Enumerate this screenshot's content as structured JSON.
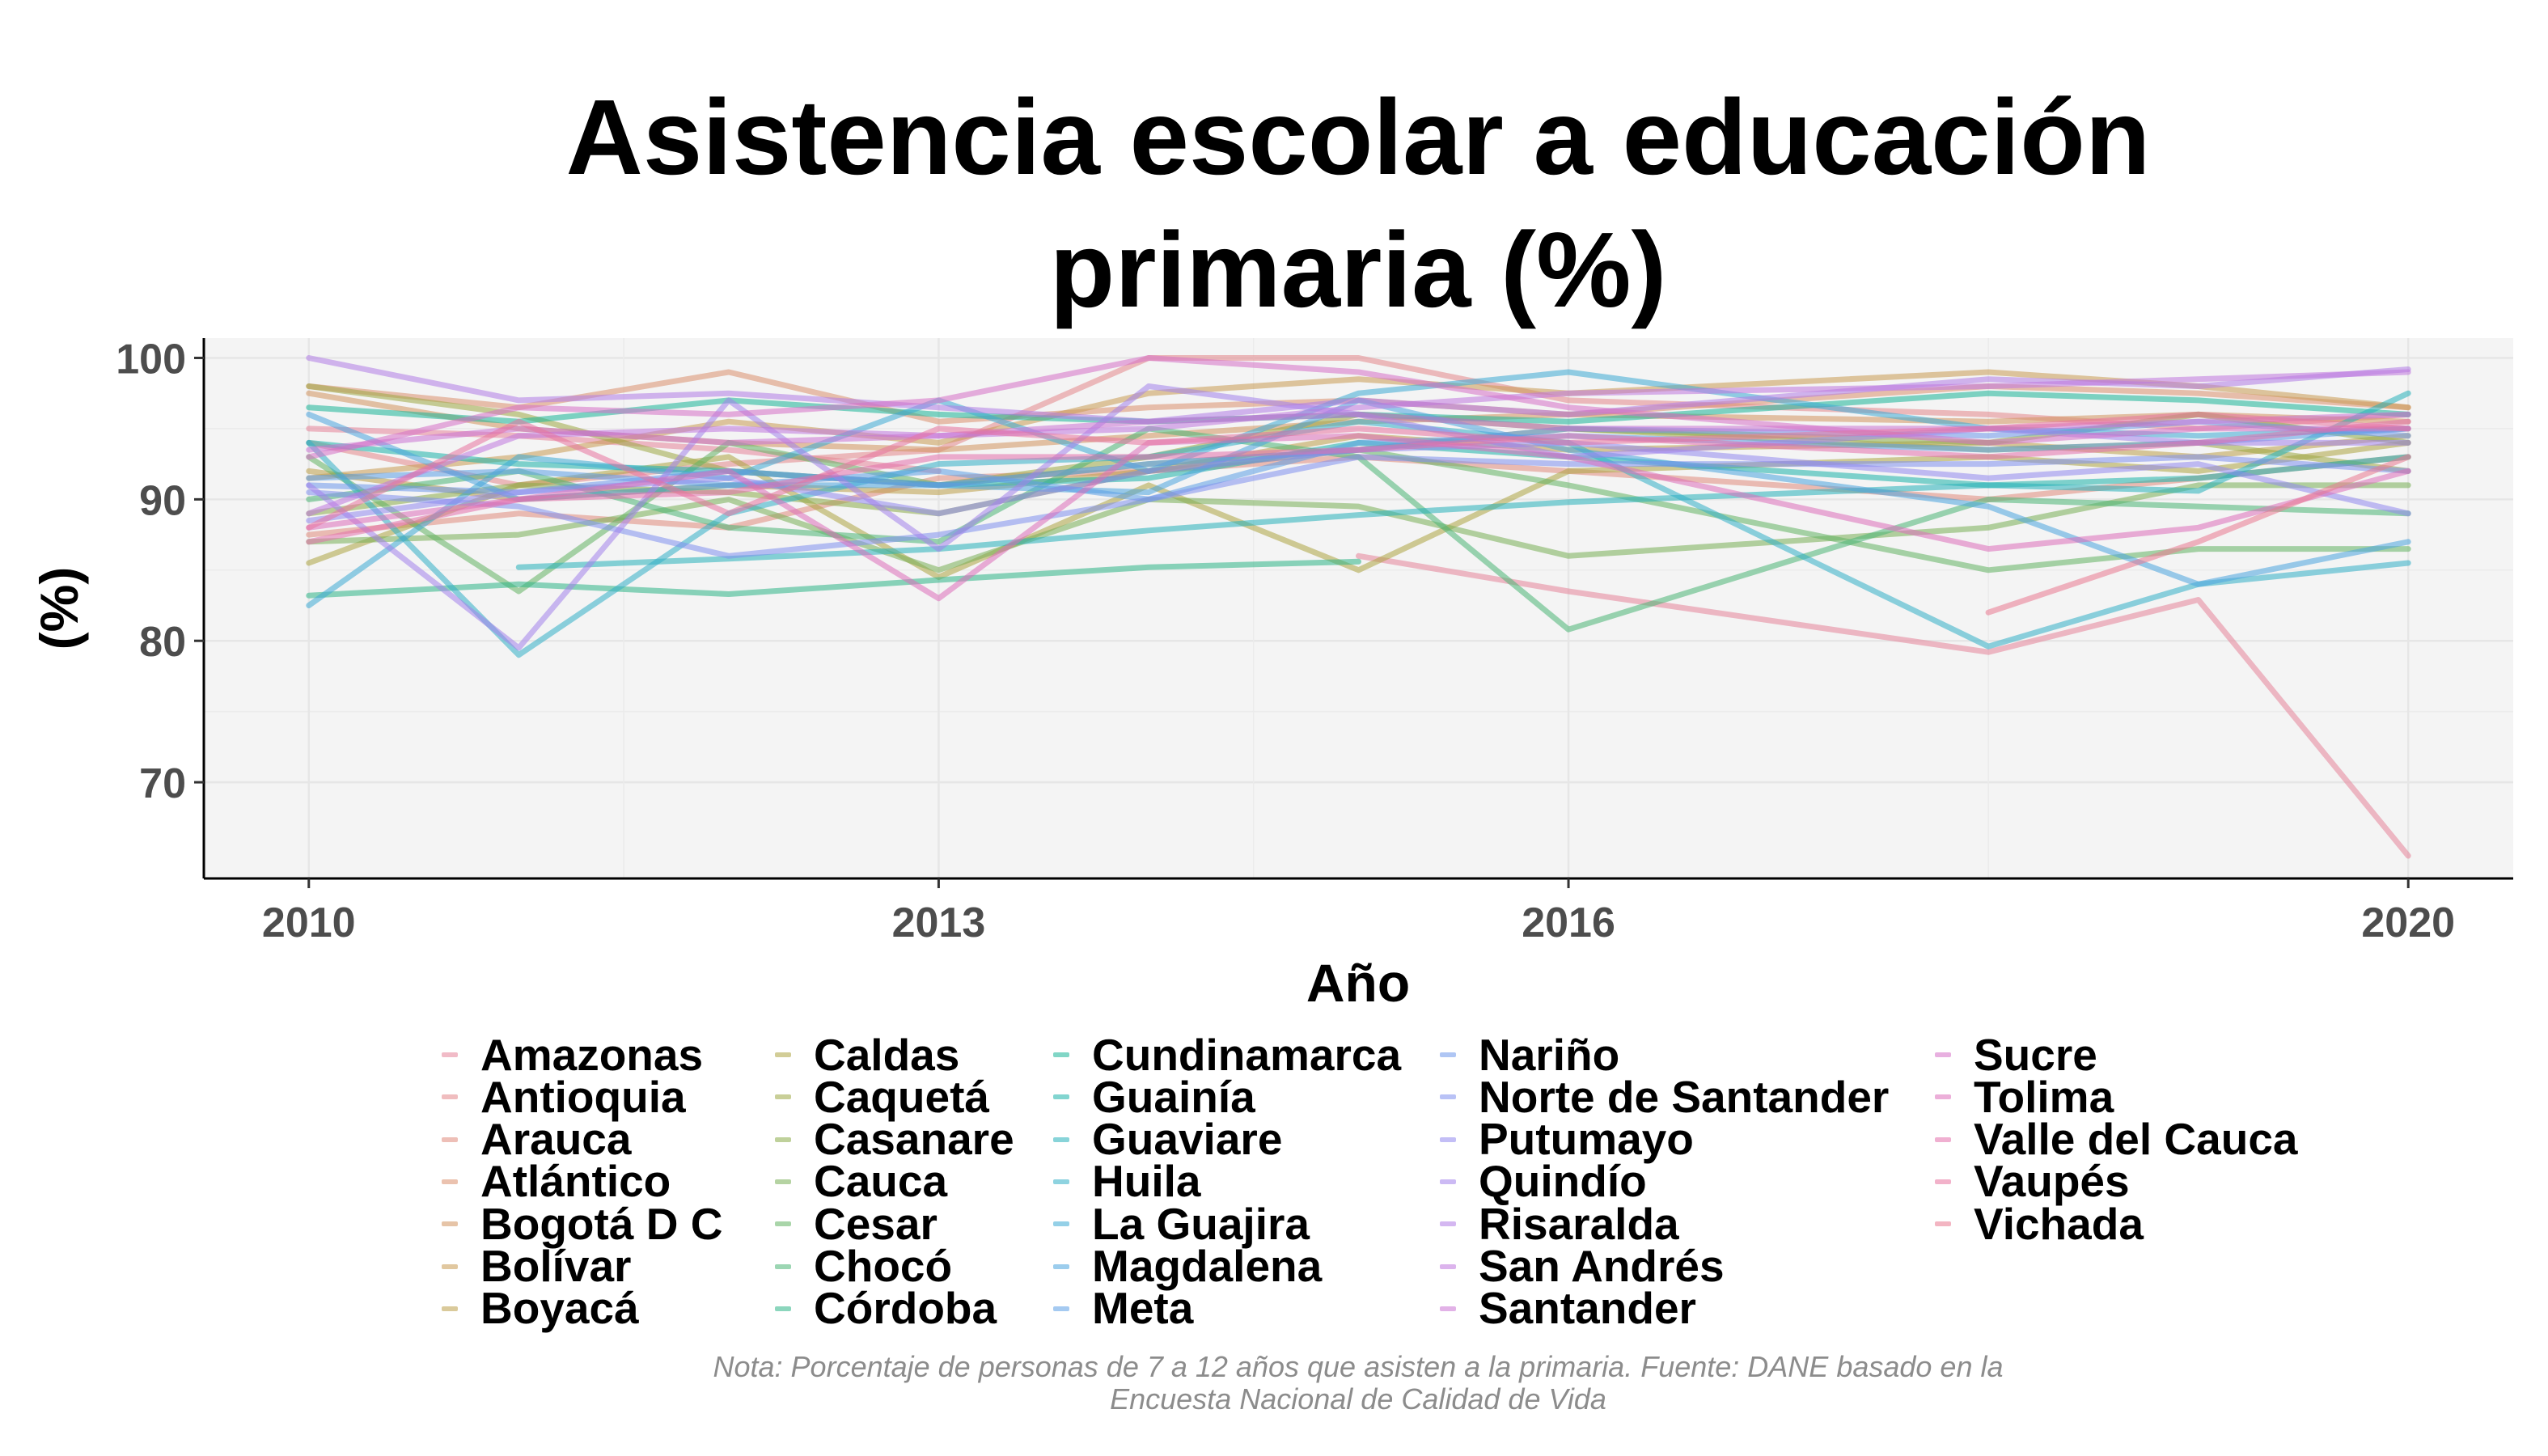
{
  "chart_data": {
    "type": "line",
    "title_lines": [
      "Asistencia escolar a educación",
      "primaria (%)"
    ],
    "xlabel": "Año",
    "ylabel": "(%)",
    "xlim": [
      2009.5,
      2020.5
    ],
    "ylim": [
      63.2,
      101.4
    ],
    "xticks": [
      2010,
      2013,
      2016,
      2020
    ],
    "yticks": [
      70,
      80,
      90,
      100
    ],
    "grid": true,
    "legend_position": "bottom",
    "caption_lines": [
      "Nota: Porcentaje de personas de 7 a 12 años que asisten a la primaria. Fuente: DANE basado en la",
      "Encuesta Nacional de Calidad de Vida"
    ],
    "x": [
      2010,
      2011,
      2012,
      2013,
      2014,
      2015,
      2016,
      2018,
      2019,
      2020
    ],
    "series": [
      {
        "name": "Amazonas",
        "color": "#E58499",
        "values": [
          95.0,
          94.5,
          93.5,
          92.0,
          null,
          86.0,
          83.5,
          79.2,
          82.9,
          64.8
        ]
      },
      {
        "name": "Antioquia",
        "color": "#E3878A",
        "values": [
          94.0,
          91.0,
          92.5,
          93.5,
          100.0,
          100.0,
          97.0,
          96.0,
          95.0,
          96.0
        ]
      },
      {
        "name": "Arauca",
        "color": "#E08B7C",
        "values": [
          87.5,
          89.0,
          88.0,
          91.5,
          92.0,
          93.0,
          92.0,
          90.0,
          91.5,
          93.0
        ]
      },
      {
        "name": "Atlántico",
        "color": "#DA8F6D",
        "values": [
          98.0,
          96.5,
          99.0,
          95.5,
          96.5,
          97.0,
          96.0,
          98.0,
          97.5,
          96.5
        ]
      },
      {
        "name": "Bogotá D C",
        "color": "#D2945F",
        "values": [
          97.5,
          95.0,
          94.0,
          93.5,
          94.5,
          95.5,
          96.0,
          95.5,
          96.0,
          95.5
        ]
      },
      {
        "name": "Bolívar",
        "color": "#C89A52",
        "values": [
          91.5,
          93.0,
          95.5,
          94.0,
          97.5,
          98.5,
          97.5,
          99.0,
          98.0,
          96.5
        ]
      },
      {
        "name": "Boyacá",
        "color": "#BC9F48",
        "values": [
          92.0,
          90.0,
          91.0,
          90.5,
          92.0,
          94.5,
          93.5,
          94.0,
          93.0,
          94.5
        ]
      },
      {
        "name": "Caldas",
        "color": "#ADA442",
        "values": [
          85.5,
          91.0,
          93.0,
          84.5,
          91.0,
          85.0,
          92.0,
          93.0,
          92.0,
          94.0
        ]
      },
      {
        "name": "Caquetá",
        "color": "#9DA843",
        "values": [
          98.0,
          96.0,
          92.0,
          91.0,
          93.0,
          96.0,
          95.0,
          93.5,
          94.0,
          92.0
        ]
      },
      {
        "name": "Casanare",
        "color": "#8BAC49",
        "values": [
          89.0,
          91.0,
          90.5,
          89.0,
          92.0,
          93.5,
          95.0,
          94.0,
          96.0,
          94.0
        ]
      },
      {
        "name": "Cauca",
        "color": "#78AF55",
        "values": [
          87.0,
          87.5,
          90.0,
          85.0,
          90.0,
          89.5,
          86.0,
          88.0,
          91.0,
          91.0
        ]
      },
      {
        "name": "Cesar",
        "color": "#62B263",
        "values": [
          93.0,
          83.5,
          94.0,
          91.0,
          92.5,
          93.5,
          91.0,
          85.0,
          86.5,
          86.5
        ]
      },
      {
        "name": "Chocó",
        "color": "#4AB474",
        "values": [
          90.0,
          92.0,
          88.0,
          87.0,
          95.0,
          93.0,
          80.8,
          90.0,
          89.5,
          89.0
        ]
      },
      {
        "name": "Córdoba",
        "color": "#2EB586",
        "values": [
          83.2,
          84.0,
          83.3,
          84.3,
          85.2,
          85.6,
          null,
          null,
          null,
          null
        ]
      },
      {
        "name": "Cundinamarca",
        "color": "#19B598",
        "values": [
          96.5,
          95.5,
          97.0,
          96.0,
          95.5,
          96.0,
          95.5,
          97.5,
          97.0,
          96.0
        ]
      },
      {
        "name": "Guainía",
        "color": "#1BB3A9",
        "values": [
          94.0,
          92.5,
          92.0,
          91.0,
          91.5,
          94.0,
          93.0,
          91.0,
          91.5,
          93.0
        ]
      },
      {
        "name": "Guaviare",
        "color": "#27B1B9",
        "values": [
          null,
          85.2,
          85.8,
          86.5,
          87.8,
          88.9,
          89.8,
          91.0,
          90.6,
          97.5
        ]
      },
      {
        "name": "Huila",
        "color": "#32AEC7",
        "values": [
          94.0,
          79.0,
          89.0,
          92.5,
          93.0,
          95.5,
          94.0,
          79.6,
          84.0,
          85.5
        ]
      },
      {
        "name": "La Guajira",
        "color": "#3DA9D3",
        "values": [
          82.5,
          93.0,
          91.5,
          97.0,
          92.0,
          97.5,
          99.0,
          95.0,
          94.5,
          95.0
        ]
      },
      {
        "name": "Magdalena",
        "color": "#4BA4DE",
        "values": [
          96.0,
          90.0,
          91.0,
          91.0,
          90.5,
          97.0,
          93.5,
          89.5,
          84.0,
          87.0
        ]
      },
      {
        "name": "Meta",
        "color": "#5B9EE6",
        "values": [
          91.5,
          92.0,
          91.0,
          92.0,
          90.0,
          94.0,
          94.5,
          93.5,
          94.0,
          95.0
        ]
      },
      {
        "name": "Nariño",
        "color": "#6D97EB",
        "values": [
          91.0,
          90.5,
          92.0,
          91.0,
          92.5,
          93.5,
          95.0,
          94.5,
          95.5,
          94.5
        ]
      },
      {
        "name": "Norte de Santander",
        "color": "#7F90EE",
        "values": [
          90.5,
          89.5,
          86.0,
          87.5,
          90.0,
          93.0,
          92.5,
          92.5,
          93.0,
          92.0
        ]
      },
      {
        "name": "Putumayo",
        "color": "#9188EE",
        "values": [
          88.5,
          90.5,
          91.5,
          89.0,
          92.0,
          93.5,
          94.0,
          91.5,
          92.5,
          89.0
        ]
      },
      {
        "name": "Quindío",
        "color": "#A281EB",
        "values": [
          91.0,
          79.5,
          97.0,
          86.5,
          98.0,
          96.0,
          93.0,
          95.0,
          94.0,
          94.0
        ]
      },
      {
        "name": "Risaralda",
        "color": "#B17BE6",
        "values": [
          100.0,
          97.0,
          97.5,
          96.5,
          95.5,
          97.0,
          96.0,
          98.5,
          98.0,
          99.2
        ]
      },
      {
        "name": "San Andrés",
        "color": "#BF76DE",
        "values": [
          89.0,
          94.5,
          95.0,
          94.5,
          95.0,
          96.5,
          97.5,
          98.0,
          98.5,
          99.0
        ]
      },
      {
        "name": "Santander",
        "color": "#CB72D4",
        "values": [
          93.5,
          95.0,
          94.0,
          94.5,
          95.5,
          96.0,
          95.0,
          95.0,
          95.5,
          96.0
        ]
      },
      {
        "name": "Sucre",
        "color": "#D56FC7",
        "values": [
          93.0,
          96.5,
          96.0,
          97.0,
          100.0,
          99.0,
          96.5,
          94.0,
          95.0,
          95.0
        ]
      },
      {
        "name": "Tolima",
        "color": "#DD6EBA",
        "values": [
          88.0,
          90.0,
          92.0,
          83.0,
          94.0,
          94.5,
          93.0,
          86.5,
          88.0,
          92.0
        ]
      },
      {
        "name": "Valle del Cauca",
        "color": "#E36FAC",
        "values": [
          87.0,
          90.0,
          90.5,
          93.0,
          93.0,
          93.5,
          94.5,
          93.0,
          94.0,
          95.5
        ]
      },
      {
        "name": "Vaupés",
        "color": "#E7729E",
        "values": [
          88.0,
          95.5,
          89.0,
          95.0,
          94.0,
          95.0,
          94.0,
          95.0,
          96.0,
          95.0
        ]
      },
      {
        "name": "Vichada",
        "color": "#E97890",
        "values": [
          null,
          null,
          null,
          null,
          null,
          null,
          null,
          82.0,
          87.0,
          93.0
        ]
      }
    ]
  }
}
